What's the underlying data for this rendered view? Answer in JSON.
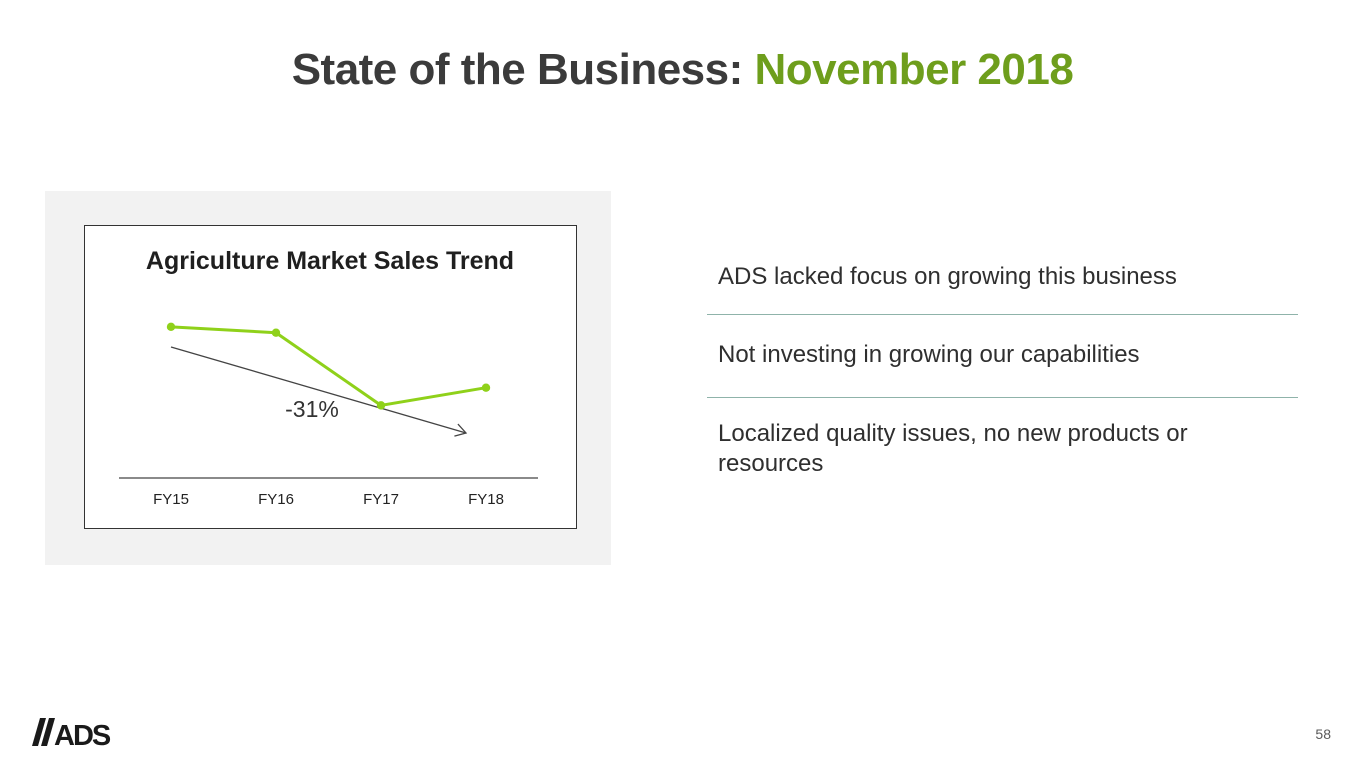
{
  "slide": {
    "title_prefix": "State of the Business:",
    "title_highlight": "November 2018",
    "page_number": "58",
    "logo_text": "//ADS"
  },
  "points": [
    "ADS lacked focus on growing this business",
    "Not investing in growing our capabilities",
    "Localized quality issues, no new products or resources"
  ],
  "colors": {
    "accent": "#6e9e1c",
    "line": "#8fd11a",
    "separator": "#8fb3aa",
    "panel": "#f2f2f2"
  },
  "chart_data": {
    "type": "line",
    "title": "Agriculture Market Sales Trend",
    "categories": [
      "FY15",
      "FY16",
      "FY17",
      "FY18"
    ],
    "series": [
      {
        "values": [
          100,
          97,
          60,
          69
        ]
      }
    ],
    "trend": {
      "label": "-31%",
      "from": "FY15",
      "to": "FY18"
    },
    "grid": false,
    "y_axis": "none"
  }
}
